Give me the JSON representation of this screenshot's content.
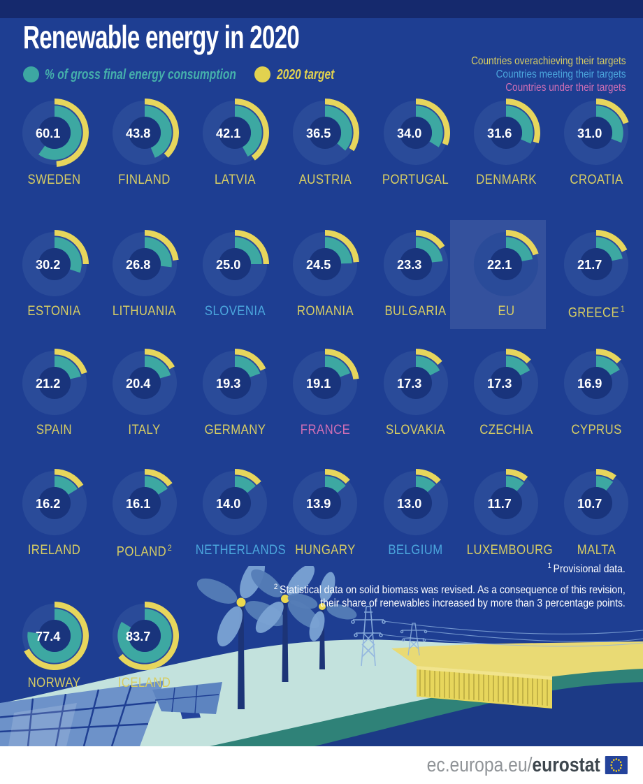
{
  "title": "Renewable energy in 2020",
  "legend": {
    "consumption_label": "% of gross final energy consumption",
    "target_label": "2020 target",
    "statuses": [
      {
        "key": "over",
        "label": "Countries overachieving their targets",
        "color": "#d7cd63"
      },
      {
        "key": "meet",
        "label": "Countries meeting their targets",
        "color": "#4ba6dd"
      },
      {
        "key": "under",
        "label": "Countries under their targets",
        "color": "#d06fb5"
      }
    ]
  },
  "chart_data": {
    "type": "donut",
    "unit": "% share of renewable energy in gross final energy consumption",
    "arc_semantics": {
      "teal_arc": "2020 actual renewable share (%)",
      "yellow_arc": "2020 national target (%)",
      "scale": "full circle = 100%, arcs start at 12 o'clock and run clockwise"
    },
    "countries": [
      {
        "name": "SWEDEN",
        "value": "60.1",
        "target": 49,
        "status": "over"
      },
      {
        "name": "FINLAND",
        "value": "43.8",
        "target": 38,
        "status": "over"
      },
      {
        "name": "LATVIA",
        "value": "42.1",
        "target": 40,
        "status": "over"
      },
      {
        "name": "AUSTRIA",
        "value": "36.5",
        "target": 34,
        "status": "over"
      },
      {
        "name": "PORTUGAL",
        "value": "34.0",
        "target": 31,
        "status": "over"
      },
      {
        "name": "DENMARK",
        "value": "31.6",
        "target": 30,
        "status": "over"
      },
      {
        "name": "CROATIA",
        "value": "31.0",
        "target": 20,
        "status": "over"
      },
      {
        "name": "ESTONIA",
        "value": "30.2",
        "target": 25,
        "status": "over"
      },
      {
        "name": "LITHUANIA",
        "value": "26.8",
        "target": 23,
        "status": "over"
      },
      {
        "name": "SLOVENIA",
        "value": "25.0",
        "target": 25,
        "status": "meet"
      },
      {
        "name": "ROMANIA",
        "value": "24.5",
        "target": 24,
        "status": "over"
      },
      {
        "name": "BULGARIA",
        "value": "23.3",
        "target": 16,
        "status": "over"
      },
      {
        "name": "EU",
        "value": "22.1",
        "target": 20,
        "status": "over",
        "highlight": true
      },
      {
        "name": "GREECE",
        "value": "21.7",
        "target": 18,
        "status": "over",
        "footnote": "1"
      },
      {
        "name": "SPAIN",
        "value": "21.2",
        "target": 20,
        "status": "over"
      },
      {
        "name": "ITALY",
        "value": "20.4",
        "target": 17,
        "status": "over"
      },
      {
        "name": "GERMANY",
        "value": "19.3",
        "target": 18,
        "status": "over"
      },
      {
        "name": "FRANCE",
        "value": "19.1",
        "target": 23,
        "status": "under"
      },
      {
        "name": "SLOVAKIA",
        "value": "17.3",
        "target": 14,
        "status": "over"
      },
      {
        "name": "CZECHIA",
        "value": "17.3",
        "target": 13,
        "status": "over"
      },
      {
        "name": "CYPRUS",
        "value": "16.9",
        "target": 13,
        "status": "over"
      },
      {
        "name": "IRELAND",
        "value": "16.2",
        "target": 16,
        "status": "over"
      },
      {
        "name": "POLAND",
        "value": "16.1",
        "target": 15,
        "status": "over",
        "footnote": "2"
      },
      {
        "name": "NETHERLANDS",
        "value": "14.0",
        "target": 14,
        "status": "meet"
      },
      {
        "name": "HUNGARY",
        "value": "13.9",
        "target": 13,
        "status": "over"
      },
      {
        "name": "BELGIUM",
        "value": "13.0",
        "target": 13,
        "status": "meet"
      },
      {
        "name": "LUXEMBOURG",
        "value": "11.7",
        "target": 11,
        "status": "over"
      },
      {
        "name": "MALTA",
        "value": "10.7",
        "target": 10,
        "status": "over"
      },
      {
        "name": "NORWAY",
        "value": "77.4",
        "target": 67.5,
        "status": "over"
      },
      {
        "name": "ICELAND",
        "value": "83.7",
        "target": 64,
        "status": "over"
      }
    ]
  },
  "footnotes": [
    {
      "marker": "1",
      "lines": [
        "Provisional data."
      ]
    },
    {
      "marker": "2",
      "lines": [
        "Statistical data on solid biomass was revised. As a consequence of this revision,",
        "their share of renewables increased by more than 3 percentage points."
      ]
    }
  ],
  "footer": {
    "url_prefix": "ec.europa.eu/",
    "url_brand": "eurostat"
  },
  "colors": {
    "background": "#1e3e92",
    "top_band": "#15296d",
    "donut_track": "#2a4b99",
    "donut_hole": "#19347c",
    "share_teal": "#3da8a2",
    "target_yellow": "#e7d65c",
    "value_text": "#ffffff",
    "legend_teal_text": "#45b0ab",
    "legend_yellow_text": "#e2d24f",
    "eu_highlight": "rgba(255,255,255,0.10)"
  }
}
